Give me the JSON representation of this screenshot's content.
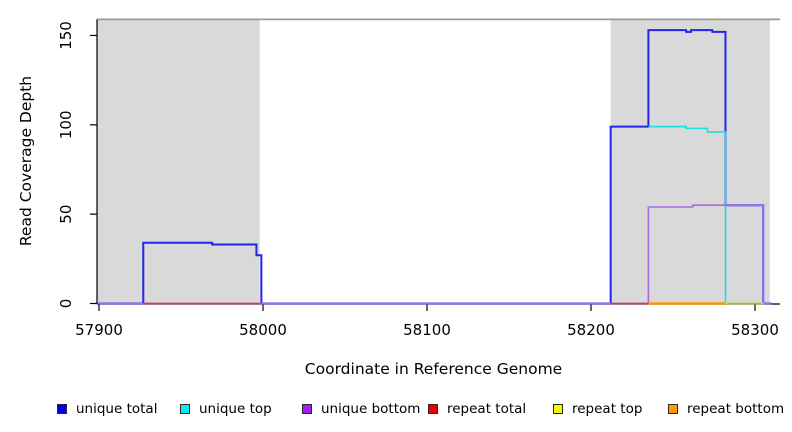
{
  "chart_data": {
    "type": "line",
    "title": "",
    "xlabel": "Coordinate in Reference Genome",
    "ylabel": "Read Coverage Depth",
    "xlim": [
      57890,
      58315
    ],
    "ylim": [
      0,
      159
    ],
    "xticks": [
      57900,
      58000,
      58100,
      58200,
      58300
    ],
    "yticks": [
      0,
      50,
      100,
      150
    ],
    "grid": false,
    "region_color": "#d9d9d9",
    "top_line": {
      "y": 159,
      "color": "#999999"
    },
    "shaded_regions": [
      {
        "x0": 57899,
        "x1": 57998
      },
      {
        "x0": 58212,
        "x1": 58309
      }
    ],
    "series": [
      {
        "name": "unique total",
        "color": "#2424ee",
        "width": 2,
        "segments": [
          [
            [
              57899,
              0
            ],
            [
              57927,
              0
            ],
            [
              57927,
              34
            ],
            [
              57969,
              34
            ],
            [
              57969,
              33
            ],
            [
              57996,
              33
            ],
            [
              57996,
              27
            ],
            [
              57999,
              27
            ],
            [
              57999,
              0
            ],
            [
              58212,
              0
            ],
            [
              58212,
              99
            ],
            [
              58235,
              99
            ],
            [
              58235,
              153
            ],
            [
              58258,
              153
            ],
            [
              58258,
              152
            ],
            [
              58261,
              152
            ],
            [
              58261,
              153
            ],
            [
              58274,
              153
            ],
            [
              58274,
              152
            ],
            [
              58282,
              152
            ],
            [
              58282,
              55
            ],
            [
              58305,
              55
            ],
            [
              58305,
              0
            ],
            [
              58310,
              0
            ]
          ]
        ]
      },
      {
        "name": "unique top",
        "color": "#1fdede",
        "width": 1.6,
        "segments": [
          [
            [
              58235,
              99
            ],
            [
              58258,
              99
            ],
            [
              58258,
              98
            ],
            [
              58271,
              98
            ],
            [
              58271,
              96
            ],
            [
              58282,
              96
            ],
            [
              58282,
              0
            ]
          ]
        ]
      },
      {
        "name": "unique bottom",
        "color": "#a76ae0",
        "width": 1.6,
        "segments": [
          [
            [
              57899,
              0
            ],
            [
              58235,
              0
            ],
            [
              58235,
              54
            ],
            [
              58262,
              54
            ],
            [
              58262,
              55
            ],
            [
              58305,
              55
            ],
            [
              58305,
              0
            ],
            [
              58310,
              0
            ]
          ]
        ]
      },
      {
        "name": "repeat total",
        "color": "#e8304a",
        "width": 1.6,
        "segments": [
          [
            [
              57927,
              0
            ],
            [
              57999,
              0
            ]
          ],
          [
            [
              58212,
              0
            ],
            [
              58235,
              0
            ]
          ]
        ]
      },
      {
        "name": "repeat top",
        "color": "#f5e800",
        "width": 1.8,
        "segments": [
          [
            [
              58282,
              0
            ],
            [
              58305,
              0
            ]
          ]
        ]
      },
      {
        "name": "repeat bottom",
        "color": "#ff9414",
        "width": 2.4,
        "segments": [
          [
            [
              58235,
              0
            ],
            [
              58282,
              0
            ]
          ]
        ]
      }
    ],
    "overlap_artifacts": [
      {
        "name": "cyan-over-yellow-blend",
        "color": "#63c98c",
        "width": 1.4,
        "segments": [
          [
            [
              58283,
              0
            ],
            [
              58304,
              0
            ]
          ]
        ]
      }
    ]
  },
  "legend": {
    "items": [
      {
        "label": "unique total",
        "color": "#0000ee"
      },
      {
        "label": "unique top",
        "color": "#00eeee"
      },
      {
        "label": "unique bottom",
        "color": "#a020f0"
      },
      {
        "label": "repeat total",
        "color": "#ee0000"
      },
      {
        "label": "repeat top",
        "color": "#f7f700"
      },
      {
        "label": "repeat bottom",
        "color": "#ff9900"
      }
    ]
  }
}
